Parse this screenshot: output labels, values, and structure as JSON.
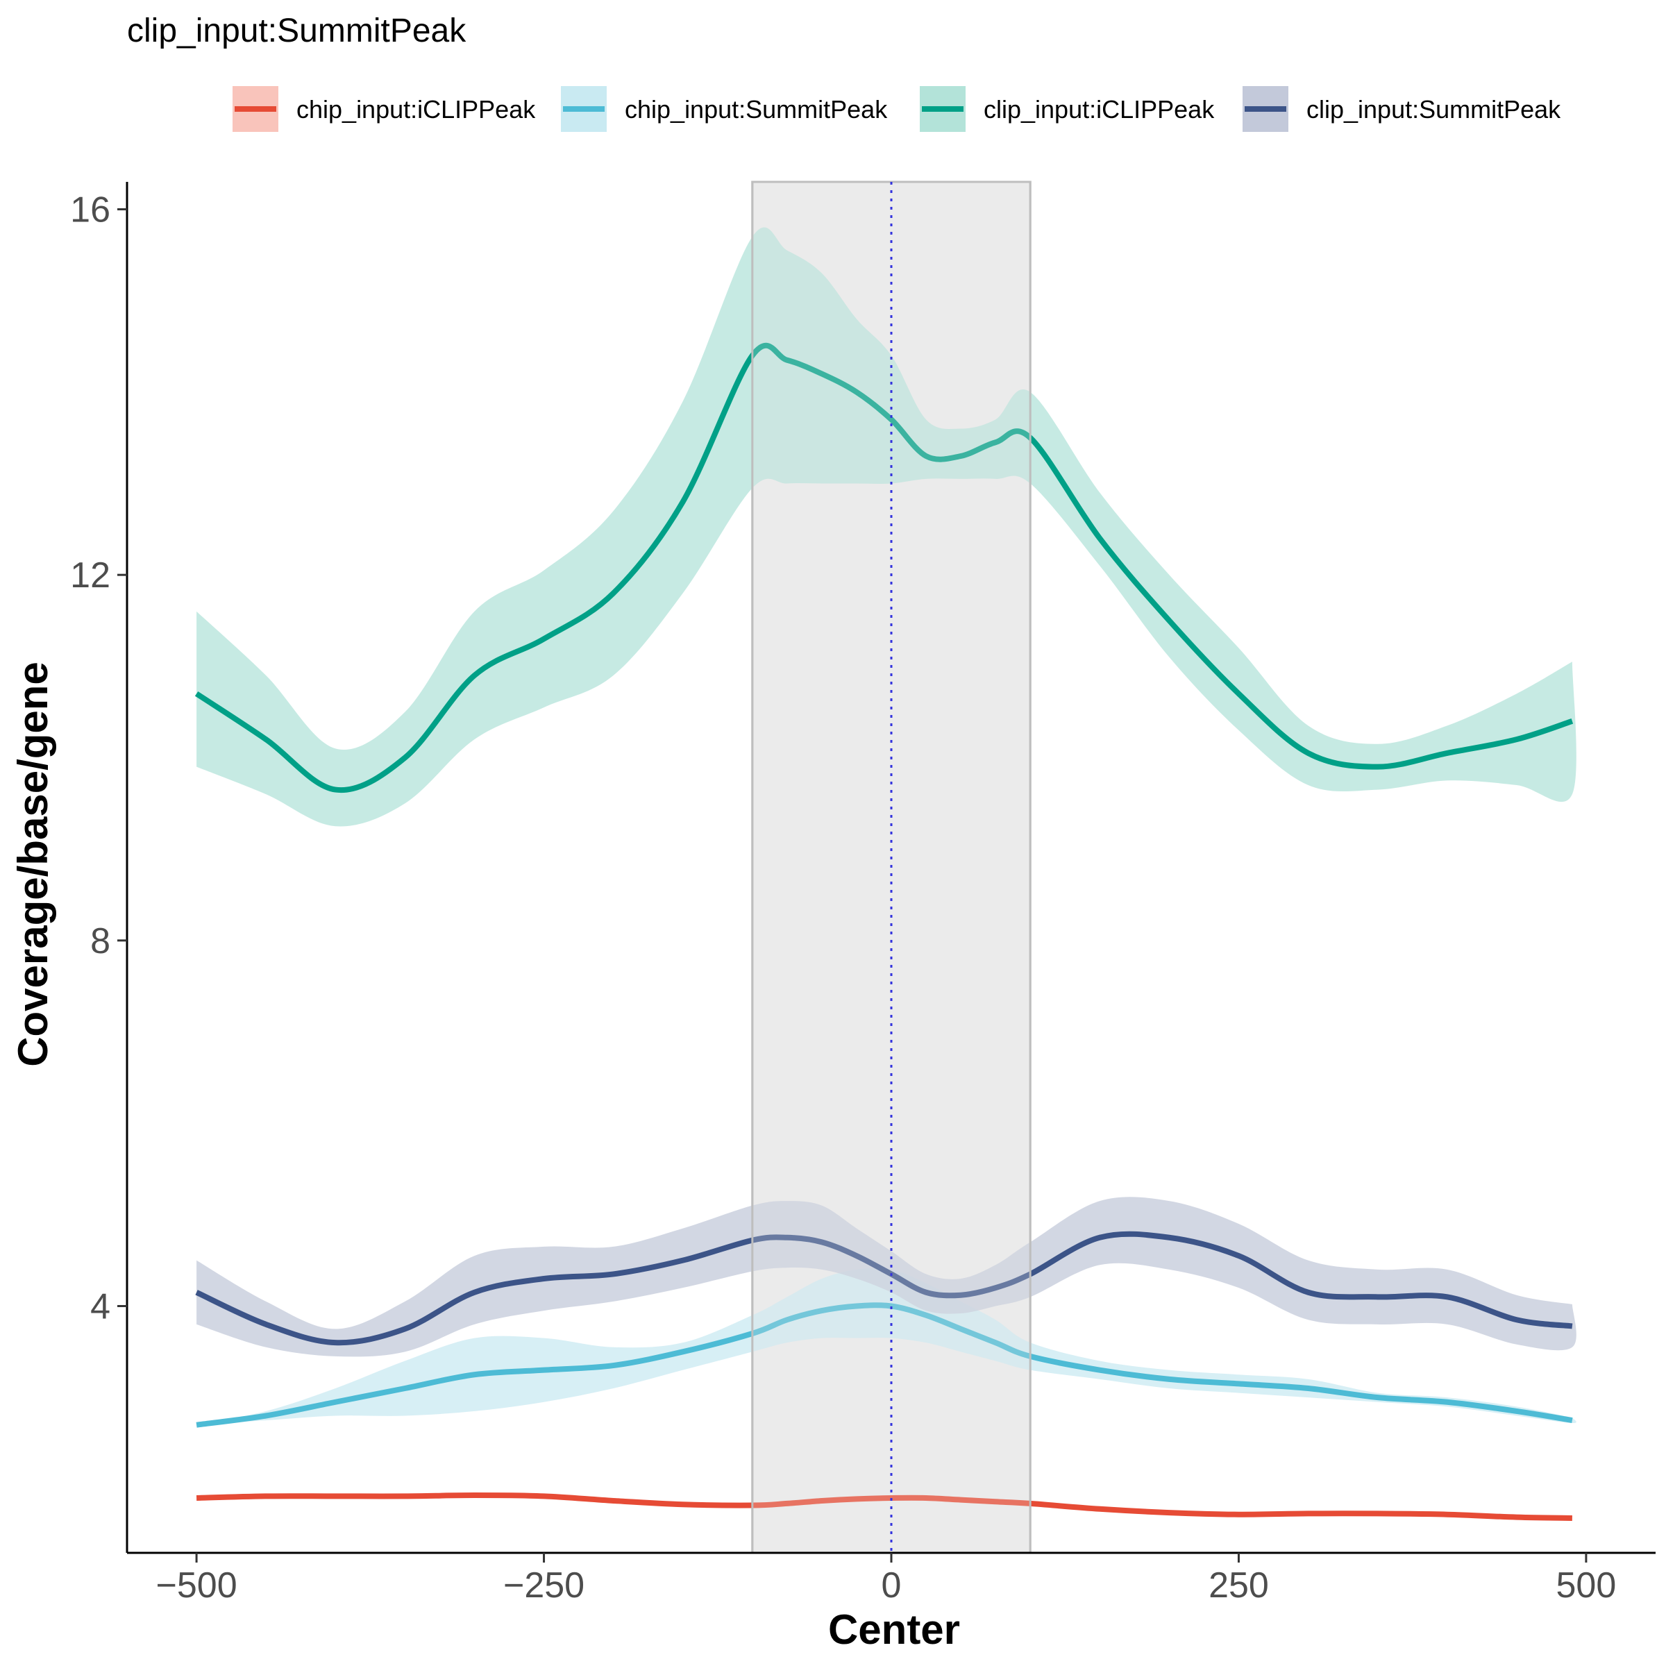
{
  "chart_data": {
    "type": "line",
    "title": "clip_input:SummitPeak",
    "xlabel": "Center",
    "ylabel": "Coverage/base/gene",
    "xlim": [
      -550,
      550
    ],
    "ylim": [
      1.3,
      16.3
    ],
    "x_ticks": [
      -500,
      -250,
      0,
      250,
      500
    ],
    "x_tick_labels": [
      "−500",
      "−250",
      "0",
      "250",
      "500"
    ],
    "y_ticks": [
      4,
      8,
      12,
      16
    ],
    "y_tick_labels": [
      "4",
      "8",
      "12",
      "16"
    ],
    "grid": false,
    "legend_position": "top",
    "center_line": {
      "x": 0,
      "color": "#3333dd",
      "style": "dotted"
    },
    "highlight_region": {
      "x": [
        -100,
        100
      ],
      "fill": "#ebebeb",
      "stroke": "#bebebe"
    },
    "x": [
      -500,
      -450,
      -400,
      -350,
      -300,
      -250,
      -200,
      -150,
      -100,
      -75,
      -50,
      -25,
      0,
      25,
      50,
      75,
      100,
      150,
      200,
      250,
      300,
      350,
      400,
      450,
      490
    ],
    "series": [
      {
        "name": "chip_input:iCLIPPeak",
        "color": "#e64b35",
        "band_color": "#f9c4bb",
        "values": [
          1.9,
          1.92,
          1.92,
          1.92,
          1.93,
          1.92,
          1.87,
          1.83,
          1.82,
          1.84,
          1.87,
          1.89,
          1.9,
          1.9,
          1.88,
          1.86,
          1.84,
          1.78,
          1.74,
          1.72,
          1.73,
          1.73,
          1.72,
          1.69,
          1.68
        ],
        "lower": [
          1.9,
          1.92,
          1.92,
          1.92,
          1.93,
          1.92,
          1.87,
          1.83,
          1.82,
          1.84,
          1.87,
          1.89,
          1.9,
          1.9,
          1.88,
          1.86,
          1.84,
          1.78,
          1.74,
          1.72,
          1.73,
          1.73,
          1.72,
          1.69,
          1.68
        ],
        "upper": [
          1.9,
          1.92,
          1.92,
          1.92,
          1.93,
          1.92,
          1.87,
          1.83,
          1.82,
          1.84,
          1.87,
          1.89,
          1.9,
          1.9,
          1.88,
          1.86,
          1.84,
          1.78,
          1.74,
          1.72,
          1.73,
          1.73,
          1.72,
          1.69,
          1.68
        ]
      },
      {
        "name": "chip_input:SummitPeak",
        "color": "#4dbbd5",
        "band_color": "#c9eaf2",
        "values": [
          2.7,
          2.8,
          2.95,
          3.1,
          3.25,
          3.3,
          3.35,
          3.5,
          3.7,
          3.85,
          3.95,
          4.0,
          4.0,
          3.9,
          3.75,
          3.6,
          3.45,
          3.3,
          3.2,
          3.15,
          3.1,
          3.0,
          2.95,
          2.85,
          2.75
        ],
        "lower": [
          2.7,
          2.75,
          2.8,
          2.8,
          2.85,
          2.95,
          3.1,
          3.3,
          3.5,
          3.6,
          3.65,
          3.65,
          3.65,
          3.6,
          3.5,
          3.4,
          3.3,
          3.2,
          3.1,
          3.05,
          3.0,
          2.95,
          2.9,
          2.8,
          2.72
        ],
        "upper": [
          2.7,
          2.85,
          3.1,
          3.4,
          3.65,
          3.65,
          3.55,
          3.6,
          3.9,
          4.1,
          4.3,
          4.4,
          4.4,
          4.25,
          4.05,
          3.85,
          3.6,
          3.4,
          3.3,
          3.25,
          3.2,
          3.05,
          3.0,
          2.9,
          2.78
        ]
      },
      {
        "name": "clip_input:iCLIPPeak",
        "color": "#00a087",
        "band_color": "#b3e3d9",
        "values": [
          10.7,
          10.2,
          9.65,
          10.0,
          10.9,
          11.3,
          11.8,
          12.8,
          14.4,
          14.35,
          14.2,
          14.0,
          13.7,
          13.3,
          13.3,
          13.45,
          13.5,
          12.4,
          11.5,
          10.7,
          10.05,
          9.9,
          10.05,
          10.2,
          10.4
        ],
        "lower": [
          9.9,
          9.6,
          9.25,
          9.5,
          10.2,
          10.55,
          10.9,
          11.8,
          12.95,
          13.0,
          13.0,
          13.0,
          13.0,
          13.05,
          13.05,
          13.05,
          13.0,
          12.1,
          11.1,
          10.3,
          9.7,
          9.65,
          9.75,
          9.7,
          9.6
        ],
        "upper": [
          11.6,
          10.9,
          10.1,
          10.5,
          11.6,
          12.05,
          12.7,
          13.9,
          15.7,
          15.55,
          15.3,
          14.8,
          14.4,
          13.7,
          13.6,
          13.7,
          14.0,
          12.9,
          12.0,
          11.2,
          10.35,
          10.15,
          10.35,
          10.7,
          11.05
        ]
      },
      {
        "name": "clip_input:SummitPeak",
        "color": "#3c5488",
        "band_color": "#c3c9da",
        "values": [
          4.15,
          3.8,
          3.6,
          3.75,
          4.15,
          4.3,
          4.35,
          4.5,
          4.72,
          4.75,
          4.7,
          4.55,
          4.35,
          4.15,
          4.12,
          4.2,
          4.35,
          4.75,
          4.75,
          4.55,
          4.15,
          4.1,
          4.1,
          3.85,
          3.78
        ],
        "lower": [
          3.8,
          3.55,
          3.45,
          3.5,
          3.8,
          3.95,
          4.05,
          4.2,
          4.38,
          4.42,
          4.4,
          4.3,
          4.15,
          3.95,
          3.92,
          4.0,
          4.1,
          4.45,
          4.4,
          4.2,
          3.85,
          3.8,
          3.8,
          3.58,
          3.55
        ],
        "upper": [
          4.5,
          4.05,
          3.75,
          4.05,
          4.55,
          4.65,
          4.65,
          4.85,
          5.1,
          5.15,
          5.1,
          4.85,
          4.6,
          4.35,
          4.3,
          4.45,
          4.7,
          5.15,
          5.15,
          4.9,
          4.5,
          4.4,
          4.4,
          4.12,
          4.02
        ]
      }
    ]
  }
}
